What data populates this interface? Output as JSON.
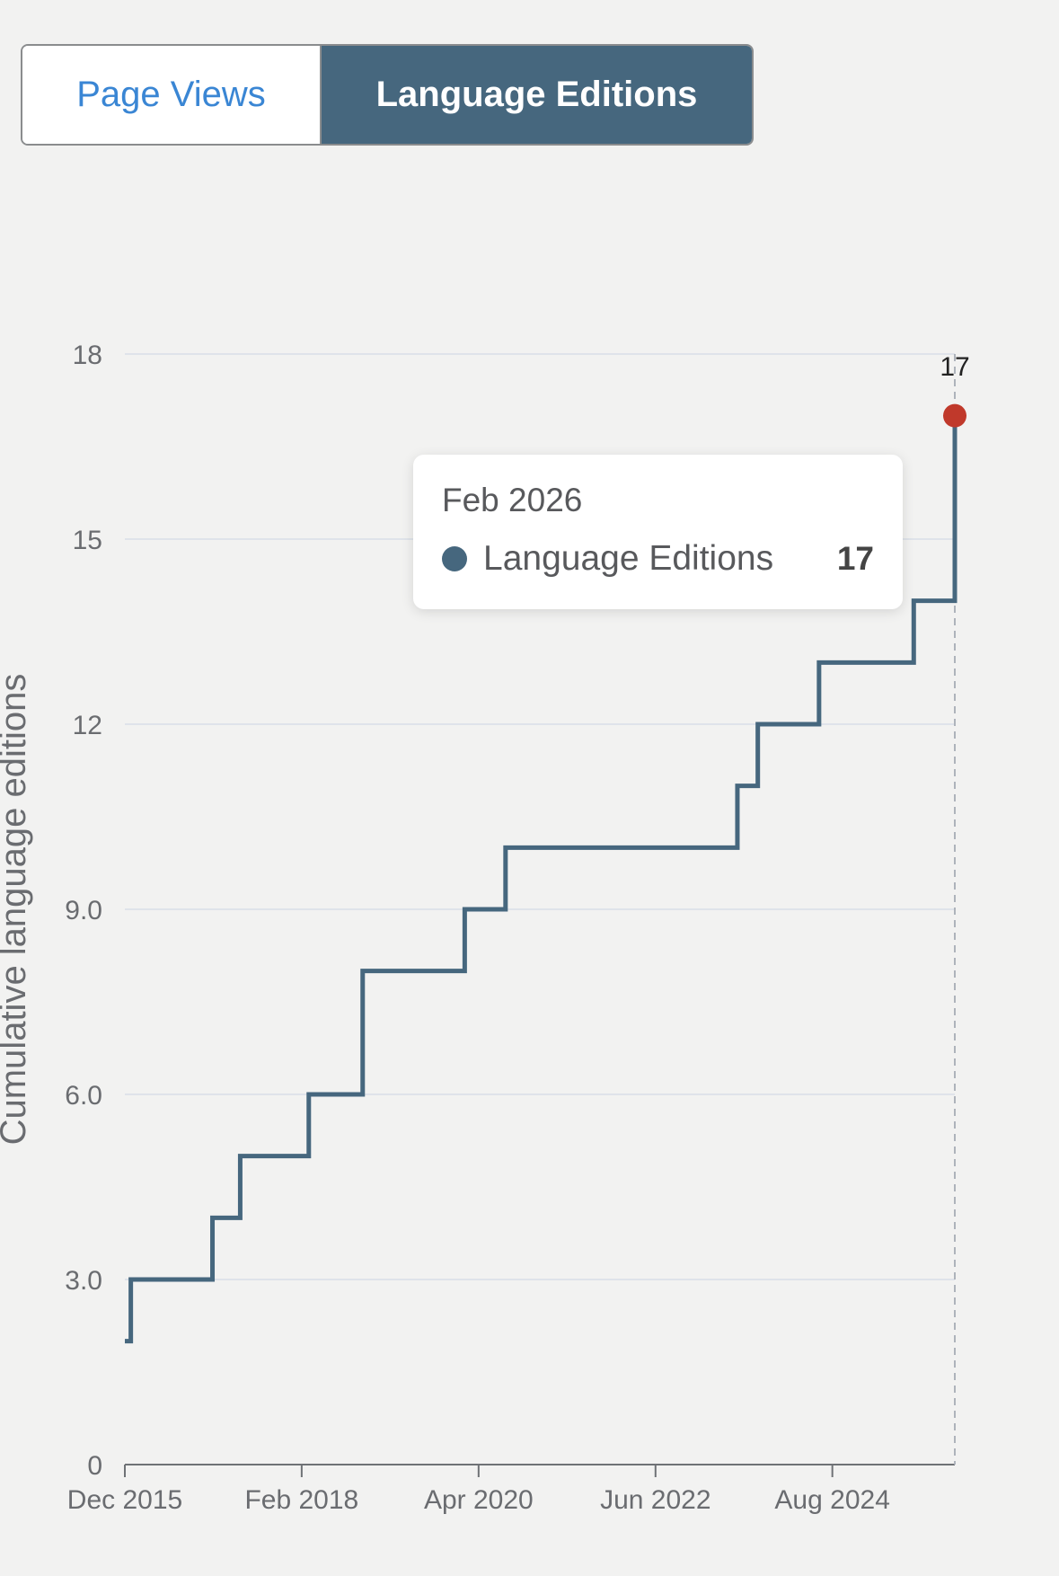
{
  "tabs": [
    {
      "label": "Page Views",
      "active": false
    },
    {
      "label": "Language Editions",
      "active": true
    }
  ],
  "tooltip": {
    "date": "Feb 2026",
    "series": "Language Editions",
    "value": "17"
  },
  "chart_data": {
    "type": "line",
    "step": true,
    "title": "",
    "xlabel": "",
    "ylabel": "Cumulative language editions",
    "ylim": [
      0,
      18
    ],
    "xlim": [
      2015.917,
      2026.083
    ],
    "y_ticks": [
      {
        "value": 0,
        "label": "0"
      },
      {
        "value": 3,
        "label": "3.0"
      },
      {
        "value": 6,
        "label": "6.0"
      },
      {
        "value": 9,
        "label": "9.0"
      },
      {
        "value": 12,
        "label": "12"
      },
      {
        "value": 15,
        "label": "15"
      },
      {
        "value": 18,
        "label": "18"
      }
    ],
    "x_ticks": [
      {
        "value": 2015.917,
        "label": "Dec 2015"
      },
      {
        "value": 2018.083,
        "label": "Feb 2018"
      },
      {
        "value": 2020.25,
        "label": "Apr 2020"
      },
      {
        "value": 2022.417,
        "label": "Jun 2022"
      },
      {
        "value": 2024.583,
        "label": "Aug 2024"
      }
    ],
    "series": [
      {
        "name": "Language Editions",
        "color": "#46677e",
        "x": [
          2015.917,
          2015.99,
          2016.99,
          2017.33,
          2018.17,
          2018.83,
          2020.08,
          2020.58,
          2023.42,
          2023.67,
          2024.42,
          2025.58,
          2026.083
        ],
        "values": [
          2,
          3,
          4,
          5,
          6,
          8,
          9,
          10,
          11,
          12,
          13,
          14,
          17
        ]
      }
    ],
    "highlight": {
      "x": 2026.083,
      "value": 17,
      "label": "17",
      "color": "#c0392b"
    }
  }
}
